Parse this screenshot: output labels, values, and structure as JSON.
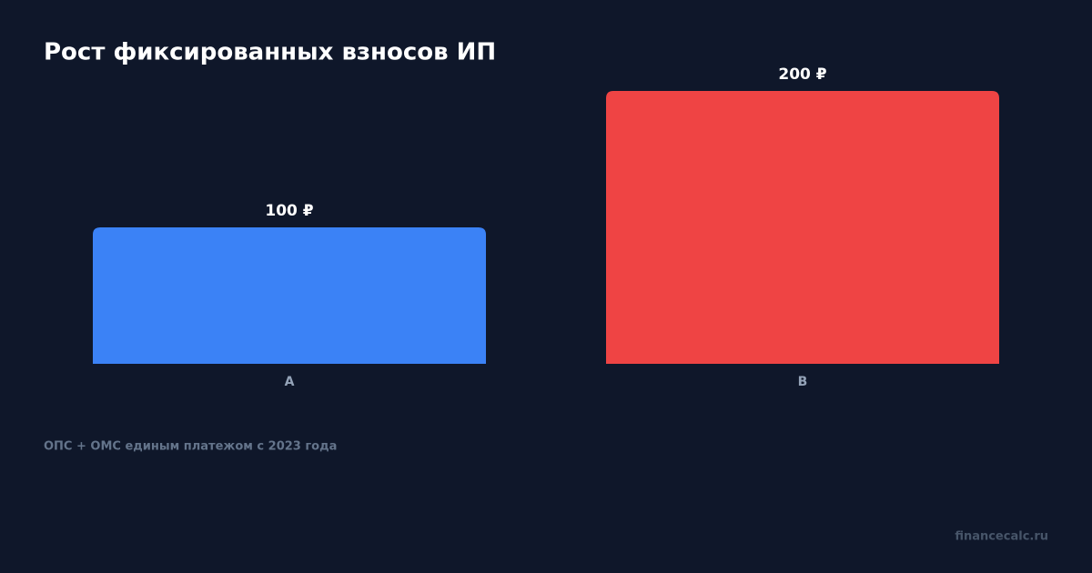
{
  "chart_data": {
    "type": "bar",
    "title": "Рост фиксированных взносов ИП",
    "categories": [
      "A",
      "B"
    ],
    "values": [
      100,
      200
    ],
    "value_labels": [
      "100 ₽",
      "200 ₽"
    ],
    "colors": [
      "#3b82f6",
      "#ef4444"
    ],
    "note": "ОПС + ОМС единым платежом с 2023 года",
    "watermark": "financecalc.ru"
  }
}
